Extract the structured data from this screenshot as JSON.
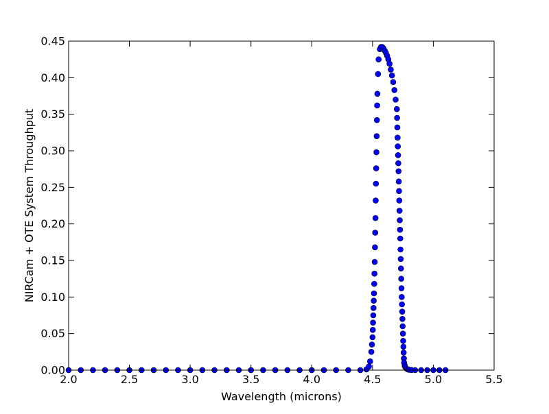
{
  "chart_data": {
    "type": "scatter",
    "title": "",
    "xlabel": "Wavelength (microns)",
    "ylabel": "NIRCam + OTE System Throughput",
    "xlim": [
      2.0,
      5.5
    ],
    "ylim": [
      0.0,
      0.45
    ],
    "xticks": [
      "2.0",
      "2.5",
      "3.0",
      "3.5",
      "4.0",
      "4.5",
      "5.0",
      "5.5"
    ],
    "yticks": [
      "0.00",
      "0.05",
      "0.10",
      "0.15",
      "0.20",
      "0.25",
      "0.30",
      "0.35",
      "0.40",
      "0.45"
    ],
    "grid": false,
    "marker_color": "#0000ff",
    "marker_edge_color": "#000000",
    "series": [
      {
        "x": [
          2.0,
          2.1,
          2.2,
          2.3,
          2.4,
          2.5,
          2.6,
          2.7,
          2.8,
          2.9,
          3.0,
          3.1,
          3.2,
          3.3,
          3.4,
          3.5,
          3.6,
          3.7,
          3.8,
          3.9,
          4.0,
          4.1,
          4.2,
          4.3,
          4.4,
          4.45,
          4.47,
          4.48,
          4.49,
          4.495,
          4.5,
          4.502,
          4.504,
          4.506,
          4.508,
          4.51,
          4.512,
          4.514,
          4.516,
          4.518,
          4.52,
          4.522,
          4.524,
          4.526,
          4.528,
          4.53,
          4.532,
          4.534,
          4.536,
          4.538,
          4.54,
          4.545,
          4.55,
          4.56,
          4.57,
          4.58,
          4.59,
          4.6,
          4.61,
          4.62,
          4.63,
          4.64,
          4.65,
          4.66,
          4.67,
          4.68,
          4.69,
          4.7,
          4.702,
          4.704,
          4.706,
          4.708,
          4.71,
          4.712,
          4.714,
          4.716,
          4.718,
          4.72,
          4.722,
          4.724,
          4.726,
          4.728,
          4.73,
          4.732,
          4.734,
          4.736,
          4.738,
          4.74,
          4.742,
          4.744,
          4.746,
          4.748,
          4.75,
          4.752,
          4.754,
          4.756,
          4.758,
          4.76,
          4.765,
          4.77,
          4.78,
          4.79,
          4.8,
          4.82,
          4.85,
          4.9,
          4.95,
          5.0,
          5.05,
          5.1
        ],
        "y": [
          0.0,
          0.0,
          0.0,
          0.0,
          0.0,
          0.0,
          0.0,
          0.0,
          0.0,
          0.0,
          0.0,
          0.0,
          0.0,
          0.0,
          0.0,
          0.0,
          0.0,
          0.0,
          0.0,
          0.0,
          0.0,
          0.0,
          0.0,
          0.0,
          0.0,
          0.001,
          0.005,
          0.012,
          0.025,
          0.035,
          0.045,
          0.055,
          0.065,
          0.075,
          0.085,
          0.095,
          0.105,
          0.118,
          0.132,
          0.148,
          0.168,
          0.188,
          0.208,
          0.232,
          0.255,
          0.276,
          0.298,
          0.32,
          0.342,
          0.362,
          0.378,
          0.405,
          0.425,
          0.439,
          0.442,
          0.442,
          0.44,
          0.437,
          0.434,
          0.43,
          0.425,
          0.419,
          0.411,
          0.403,
          0.394,
          0.383,
          0.37,
          0.357,
          0.345,
          0.332,
          0.318,
          0.306,
          0.294,
          0.283,
          0.272,
          0.258,
          0.245,
          0.232,
          0.218,
          0.205,
          0.192,
          0.18,
          0.165,
          0.152,
          0.139,
          0.125,
          0.112,
          0.1,
          0.09,
          0.08,
          0.07,
          0.06,
          0.05,
          0.04,
          0.032,
          0.024,
          0.016,
          0.01,
          0.006,
          0.004,
          0.002,
          0.001,
          0.0005,
          0.0002,
          0.0,
          0.0,
          0.0,
          0.0,
          0.0,
          0.0
        ]
      }
    ]
  }
}
